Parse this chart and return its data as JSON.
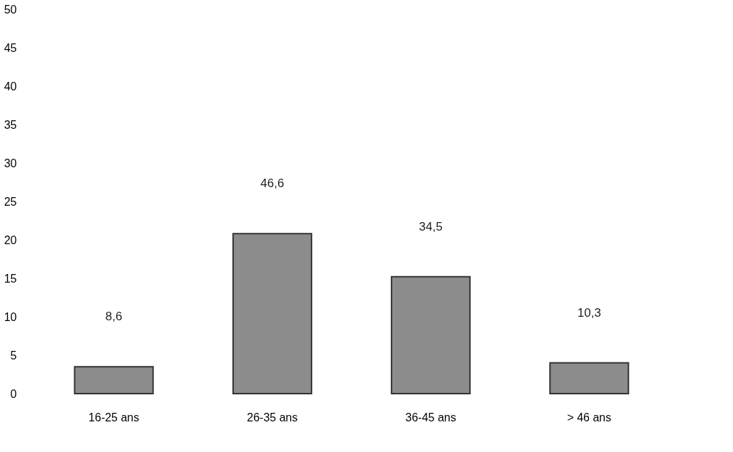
{
  "chart_data": {
    "type": "bar",
    "categories": [
      "16-25 ans",
      "26-35 ans",
      "36-45 ans",
      "> 46 ans"
    ],
    "values": [
      3.5,
      20.8,
      15.2,
      4.0
    ],
    "annotations": [
      "8,6",
      "46,6",
      "34,5",
      "10,3"
    ],
    "color": "#8c8c8c",
    "ylim": [
      0,
      50
    ],
    "yticks": [
      0,
      5,
      10,
      15,
      20,
      25,
      30,
      35,
      40,
      45,
      50
    ],
    "grid": false
  }
}
